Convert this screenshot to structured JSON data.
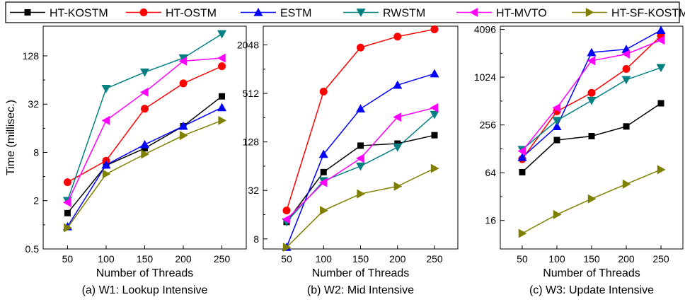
{
  "legend": {
    "entries": [
      {
        "name": "HT-KOSTM",
        "color": "#000000",
        "marker": "square"
      },
      {
        "name": "HT-OSTM",
        "color": "#ff0000",
        "marker": "circle"
      },
      {
        "name": "ESTM",
        "color": "#0000ff",
        "marker": "triangle-up"
      },
      {
        "name": "RWSTM",
        "color": "#008080",
        "marker": "triangle-down"
      },
      {
        "name": "HT-MVTO",
        "color": "#ff00ff",
        "marker": "triangle-left"
      },
      {
        "name": "HT-SF-KOSTM",
        "color": "#808000",
        "marker": "triangle-right"
      }
    ]
  },
  "chart_data": [
    {
      "type": "line",
      "caption": "(a) W1: Lookup Intensive",
      "xlabel": "Number of Threads",
      "ylabel": "Time (millisec.)",
      "y_scale": "log2",
      "ylim": [
        0.5,
        300
      ],
      "yticks": [
        0.5,
        2,
        8,
        32,
        128
      ],
      "x": [
        50,
        100,
        150,
        200,
        250
      ],
      "series": [
        {
          "name": "HT-KOSTM",
          "values": [
            1.4,
            5.5,
            9,
            17,
            40
          ]
        },
        {
          "name": "HT-OSTM",
          "values": [
            3.4,
            6.3,
            28,
            58,
            95
          ]
        },
        {
          "name": "ESTM",
          "values": [
            0.95,
            5.6,
            10,
            17,
            29
          ]
        },
        {
          "name": "RWSTM",
          "values": [
            2,
            50,
            80,
            120,
            240
          ]
        },
        {
          "name": "HT-MVTO",
          "values": [
            1.9,
            20,
            45,
            110,
            120
          ]
        },
        {
          "name": "HT-SF-KOSTM",
          "values": [
            0.92,
            4.3,
            7.6,
            13,
            20
          ]
        }
      ]
    },
    {
      "type": "line",
      "caption": "(b) W2: Mid Intensive",
      "xlabel": "Number of Threads",
      "ylabel": "",
      "y_scale": "log2",
      "ylim": [
        6,
        3500
      ],
      "yticks": [
        8,
        32,
        128,
        512,
        2048
      ],
      "x": [
        50,
        100,
        150,
        200,
        250
      ],
      "series": [
        {
          "name": "HT-KOSTM",
          "values": [
            13,
            54,
            115,
            122,
            155
          ]
        },
        {
          "name": "HT-OSTM",
          "values": [
            18,
            540,
            1900,
            2600,
            3200
          ]
        },
        {
          "name": "ESTM",
          "values": [
            6.3,
            90,
            330,
            650,
            900
          ]
        },
        {
          "name": "RWSTM",
          "values": [
            13,
            42,
            64,
            110,
            280
          ]
        },
        {
          "name": "HT-MVTO",
          "values": [
            14,
            40,
            80,
            260,
            340
          ]
        },
        {
          "name": "HT-SF-KOSTM",
          "values": [
            6.3,
            18,
            29,
            36,
            60
          ]
        }
      ]
    },
    {
      "type": "line",
      "caption": "(c) W3: Update Intensive",
      "xlabel": "Number of Threads",
      "ylabel": "",
      "y_scale": "log2",
      "ylim": [
        7,
        4500
      ],
      "yticks": [
        16,
        64,
        256,
        1024,
        4096
      ],
      "x": [
        50,
        100,
        150,
        200,
        250
      ],
      "series": [
        {
          "name": "HT-KOSTM",
          "values": [
            65,
            165,
            185,
            245,
            480
          ]
        },
        {
          "name": "HT-OSTM",
          "values": [
            95,
            380,
            650,
            1300,
            3400
          ]
        },
        {
          "name": "ESTM",
          "values": [
            100,
            245,
            2100,
            2300,
            4000
          ]
        },
        {
          "name": "RWSTM",
          "values": [
            125,
            290,
            520,
            950,
            1350
          ]
        },
        {
          "name": "HT-MVTO",
          "values": [
            120,
            420,
            1650,
            2000,
            3000
          ]
        },
        {
          "name": "HT-SF-KOSTM",
          "values": [
            11,
            19,
            30,
            46,
            70
          ]
        }
      ]
    }
  ]
}
